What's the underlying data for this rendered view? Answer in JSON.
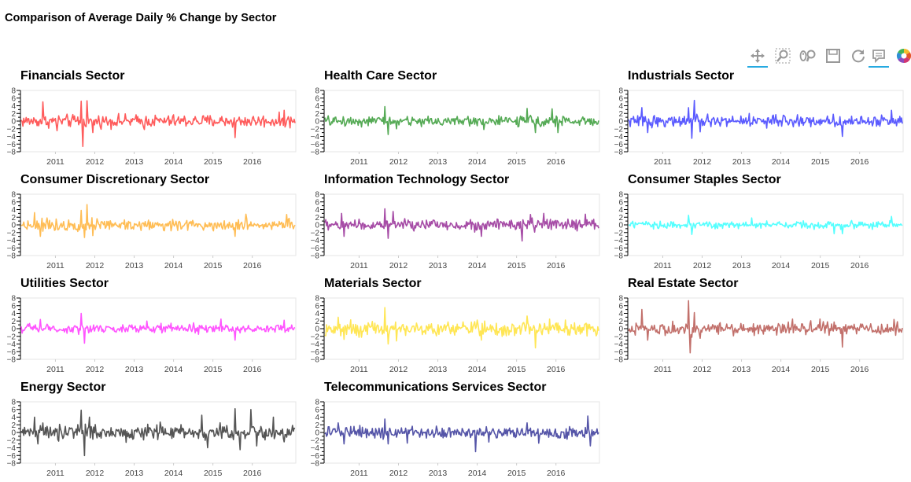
{
  "page_title": "Comparison of Average Daily % Change by Sector",
  "toolbar": {
    "tools": [
      {
        "name": "pan-tool",
        "icon": "pan-icon",
        "active": true
      },
      {
        "name": "box-zoom-tool",
        "icon": "box-zoom-icon",
        "active": false
      },
      {
        "name": "wheel-zoom-tool",
        "icon": "wheel-zoom-icon",
        "active": false
      },
      {
        "name": "save-tool",
        "icon": "save-icon",
        "active": false
      },
      {
        "name": "reset-tool",
        "icon": "reset-icon",
        "active": false
      },
      {
        "name": "hover-tool",
        "icon": "hover-icon",
        "active": true
      },
      {
        "name": "bokeh-logo",
        "icon": "bokeh-logo-icon",
        "active": false
      }
    ]
  },
  "chart_data": [
    {
      "type": "line",
      "title": "Financials Sector",
      "color": "#ff5b5b",
      "amplitude": 1.0,
      "spikes": [
        [
          0.08,
          5.0
        ],
        [
          0.13,
          -2.5
        ],
        [
          0.22,
          5.2
        ],
        [
          0.225,
          -6.6
        ],
        [
          0.24,
          5.3
        ],
        [
          0.26,
          -3.0
        ],
        [
          0.45,
          -2.2
        ],
        [
          0.78,
          -4.3
        ],
        [
          0.96,
          2.8
        ]
      ],
      "x_ticks": [
        "2011",
        "2012",
        "2013",
        "2014",
        "2015",
        "2016"
      ],
      "y_ticks": [
        -8,
        -6,
        -4,
        -2,
        0,
        2,
        4,
        6,
        8
      ],
      "ylim": [
        -8,
        8
      ]
    },
    {
      "type": "line",
      "title": "Health Care Sector",
      "color": "#55aa55",
      "amplitude": 0.8,
      "spikes": [
        [
          0.22,
          3.8
        ],
        [
          0.23,
          -3.5
        ],
        [
          0.26,
          -2.0
        ],
        [
          0.58,
          -2.2
        ],
        [
          0.74,
          3.3
        ],
        [
          0.77,
          -3.0
        ],
        [
          0.83,
          3.2
        ],
        [
          0.85,
          -3.0
        ]
      ],
      "x_ticks": [
        "2011",
        "2012",
        "2013",
        "2014",
        "2015",
        "2016"
      ],
      "y_ticks": [
        -8,
        -6,
        -4,
        -2,
        0,
        2,
        4,
        6,
        8
      ],
      "ylim": [
        -8,
        8
      ]
    },
    {
      "type": "line",
      "title": "Industrials Sector",
      "color": "#5b5bff",
      "amplitude": 0.9,
      "spikes": [
        [
          0.05,
          3.5
        ],
        [
          0.07,
          -3.0
        ],
        [
          0.22,
          3.5
        ],
        [
          0.23,
          -4.5
        ],
        [
          0.24,
          5.4
        ],
        [
          0.26,
          -2.8
        ],
        [
          0.44,
          2.0
        ],
        [
          0.78,
          -4.0
        ],
        [
          0.96,
          2.8
        ]
      ],
      "x_ticks": [
        "2011",
        "2012",
        "2013",
        "2014",
        "2015",
        "2016"
      ],
      "y_ticks": [
        -8,
        -6,
        -4,
        -2,
        0,
        2,
        4,
        6,
        8
      ],
      "ylim": [
        -8,
        8
      ]
    },
    {
      "type": "line",
      "title": "Consumer Discretionary Sector",
      "color": "#ffbd55",
      "amplitude": 0.9,
      "spikes": [
        [
          0.05,
          3.2
        ],
        [
          0.07,
          -3.0
        ],
        [
          0.22,
          3.8
        ],
        [
          0.23,
          -3.3
        ],
        [
          0.24,
          5.3
        ],
        [
          0.26,
          -2.8
        ],
        [
          0.78,
          -3.0
        ],
        [
          0.82,
          2.8
        ],
        [
          0.97,
          2.7
        ]
      ],
      "x_ticks": [
        "2011",
        "2012",
        "2013",
        "2014",
        "2015",
        "2016"
      ],
      "y_ticks": [
        -8,
        -6,
        -4,
        -2,
        0,
        2,
        4,
        6,
        8
      ],
      "ylim": [
        -8,
        8
      ]
    },
    {
      "type": "line",
      "title": "Information Technology Sector",
      "color": "#a64ca6",
      "amplitude": 0.9,
      "spikes": [
        [
          0.06,
          3.0
        ],
        [
          0.07,
          -3.0
        ],
        [
          0.22,
          4.2
        ],
        [
          0.23,
          -3.5
        ],
        [
          0.25,
          3.5
        ],
        [
          0.57,
          -3.0
        ],
        [
          0.75,
          2.7
        ],
        [
          0.8,
          3.0
        ],
        [
          0.95,
          2.8
        ],
        [
          0.72,
          -4.2
        ]
      ],
      "x_ticks": [
        "2011",
        "2012",
        "2013",
        "2014",
        "2015",
        "2016"
      ],
      "y_ticks": [
        -8,
        -6,
        -4,
        -2,
        0,
        2,
        4,
        6,
        8
      ],
      "ylim": [
        -8,
        8
      ]
    },
    {
      "type": "line",
      "title": "Consumer Staples Sector",
      "color": "#55ffff",
      "amplitude": 0.6,
      "spikes": [
        [
          0.22,
          2.5
        ],
        [
          0.23,
          -2.5
        ],
        [
          0.45,
          1.8
        ],
        [
          0.75,
          -2.3
        ],
        [
          0.78,
          -2.3
        ],
        [
          0.96,
          2.2
        ]
      ],
      "x_ticks": [
        "2011",
        "2012",
        "2013",
        "2014",
        "2015",
        "2016"
      ],
      "y_ticks": [
        -8,
        -6,
        -4,
        -2,
        0,
        2,
        4,
        6,
        8
      ],
      "ylim": [
        -8,
        8
      ]
    },
    {
      "type": "line",
      "title": "Utilities Sector",
      "color": "#ff55ff",
      "amplitude": 0.7,
      "spikes": [
        [
          0.07,
          2.4
        ],
        [
          0.22,
          4.0
        ],
        [
          0.23,
          -3.8
        ],
        [
          0.46,
          2.0
        ],
        [
          0.73,
          2.5
        ],
        [
          0.78,
          -3.0
        ],
        [
          0.96,
          2.2
        ]
      ],
      "x_ticks": [
        "2011",
        "2012",
        "2013",
        "2014",
        "2015",
        "2016"
      ],
      "y_ticks": [
        -8,
        -6,
        -4,
        -2,
        0,
        2,
        4,
        6,
        8
      ],
      "ylim": [
        -8,
        8
      ]
    },
    {
      "type": "line",
      "title": "Materials Sector",
      "color": "#ffe655",
      "amplitude": 1.1,
      "spikes": [
        [
          0.05,
          3.0
        ],
        [
          0.07,
          -2.8
        ],
        [
          0.22,
          5.5
        ],
        [
          0.23,
          -4.0
        ],
        [
          0.26,
          -3.2
        ],
        [
          0.57,
          -3.0
        ],
        [
          0.74,
          3.3
        ],
        [
          0.77,
          -5.0
        ],
        [
          0.82,
          2.5
        ]
      ],
      "x_ticks": [
        "2011",
        "2012",
        "2013",
        "2014",
        "2015",
        "2016"
      ],
      "y_ticks": [
        -8,
        -6,
        -4,
        -2,
        0,
        2,
        4,
        6,
        8
      ],
      "ylim": [
        -8,
        8
      ]
    },
    {
      "type": "line",
      "title": "Real Estate Sector",
      "color": "#c2706b",
      "amplitude": 1.0,
      "spikes": [
        [
          0.05,
          5.0
        ],
        [
          0.07,
          -3.0
        ],
        [
          0.22,
          7.3
        ],
        [
          0.225,
          -6.3
        ],
        [
          0.24,
          4.2
        ],
        [
          0.26,
          -2.5
        ],
        [
          0.6,
          2.5
        ],
        [
          0.7,
          2.5
        ],
        [
          0.78,
          -4.8
        ],
        [
          0.97,
          2.4
        ]
      ],
      "x_ticks": [
        "2011",
        "2012",
        "2013",
        "2014",
        "2015",
        "2016"
      ],
      "y_ticks": [
        -8,
        -6,
        -4,
        -2,
        0,
        2,
        4,
        6,
        8
      ],
      "ylim": [
        -8,
        8
      ]
    },
    {
      "type": "line",
      "title": "Energy Sector",
      "color": "#555555",
      "amplitude": 1.2,
      "spikes": [
        [
          0.05,
          4.0
        ],
        [
          0.06,
          -3.0
        ],
        [
          0.22,
          5.8
        ],
        [
          0.23,
          -6.0
        ],
        [
          0.25,
          4.0
        ],
        [
          0.66,
          4.5
        ],
        [
          0.68,
          -4.0
        ],
        [
          0.78,
          6.2
        ],
        [
          0.8,
          -4.5
        ],
        [
          0.84,
          6.0
        ],
        [
          0.86,
          -3.5
        ],
        [
          0.92,
          4.0
        ]
      ],
      "x_ticks": [
        "2011",
        "2012",
        "2013",
        "2014",
        "2015",
        "2016"
      ],
      "y_ticks": [
        -8,
        -6,
        -4,
        -2,
        0,
        2,
        4,
        6,
        8
      ],
      "ylim": [
        -8,
        8
      ]
    },
    {
      "type": "line",
      "title": "Telecommunications Services Sector",
      "color": "#5555a8",
      "amplitude": 0.9,
      "spikes": [
        [
          0.05,
          2.5
        ],
        [
          0.07,
          -3.0
        ],
        [
          0.22,
          3.5
        ],
        [
          0.23,
          -3.0
        ],
        [
          0.3,
          -2.8
        ],
        [
          0.55,
          -5.0
        ],
        [
          0.6,
          -2.5
        ],
        [
          0.74,
          2.5
        ],
        [
          0.78,
          -2.8
        ],
        [
          0.96,
          4.3
        ],
        [
          0.97,
          -3.5
        ]
      ],
      "x_ticks": [
        "2011",
        "2012",
        "2013",
        "2014",
        "2015",
        "2016"
      ],
      "y_ticks": [
        -8,
        -6,
        -4,
        -2,
        0,
        2,
        4,
        6,
        8
      ],
      "ylim": [
        -8,
        8
      ]
    }
  ]
}
